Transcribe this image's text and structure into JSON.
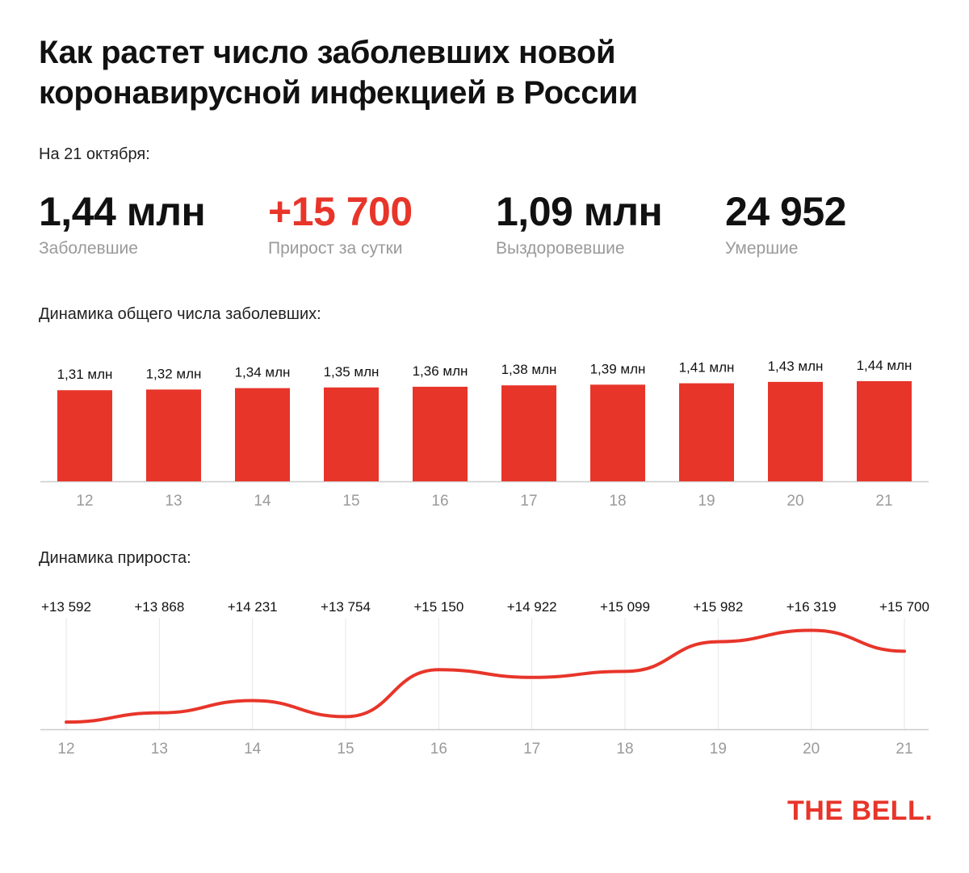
{
  "title": "Как растет число заболевших новой коронавирусной инфекцией в России",
  "date_label": "На 21 октября:",
  "stats": [
    {
      "value": "1,44 млн",
      "label": "Заболевшие"
    },
    {
      "value": "+15 700",
      "label": "Прирост за сутки"
    },
    {
      "value": "1,09 млн",
      "label": "Выздоровевшие"
    },
    {
      "value": "24 952",
      "label": "Умершие"
    }
  ],
  "colors": {
    "accent": "#e8352a",
    "muted": "#9a9a9a",
    "grid": "#e6e6e6",
    "axis": "#cccccc"
  },
  "logo": "THE BELL.",
  "chart_data": [
    {
      "type": "bar",
      "title": "Динамика общего числа заболевших:",
      "categories": [
        "12",
        "13",
        "14",
        "15",
        "16",
        "17",
        "18",
        "19",
        "20",
        "21"
      ],
      "values": [
        1.31,
        1.32,
        1.34,
        1.35,
        1.36,
        1.38,
        1.39,
        1.41,
        1.43,
        1.44
      ],
      "value_labels": [
        "1,31 млн",
        "1,32 млн",
        "1,34 млн",
        "1,35 млн",
        "1,36 млн",
        "1,38 млн",
        "1,39 млн",
        "1,41 млн",
        "1,43 млн",
        "1,44 млн"
      ],
      "ylim": [
        0,
        1.44
      ],
      "grid": false
    },
    {
      "type": "line",
      "title": "Динамика прироста:",
      "categories": [
        "12",
        "13",
        "14",
        "15",
        "16",
        "17",
        "18",
        "19",
        "20",
        "21"
      ],
      "values": [
        13592,
        13868,
        14231,
        13754,
        15150,
        14922,
        15099,
        15982,
        16319,
        15700
      ],
      "value_labels": [
        "+13 592",
        "+13 868",
        "+14 231",
        "+13 754",
        "+15 150",
        "+14 922",
        "+15 099",
        "+15 982",
        "+16 319",
        "+15 700"
      ],
      "ylim": [
        13500,
        16500
      ],
      "grid": true
    }
  ]
}
